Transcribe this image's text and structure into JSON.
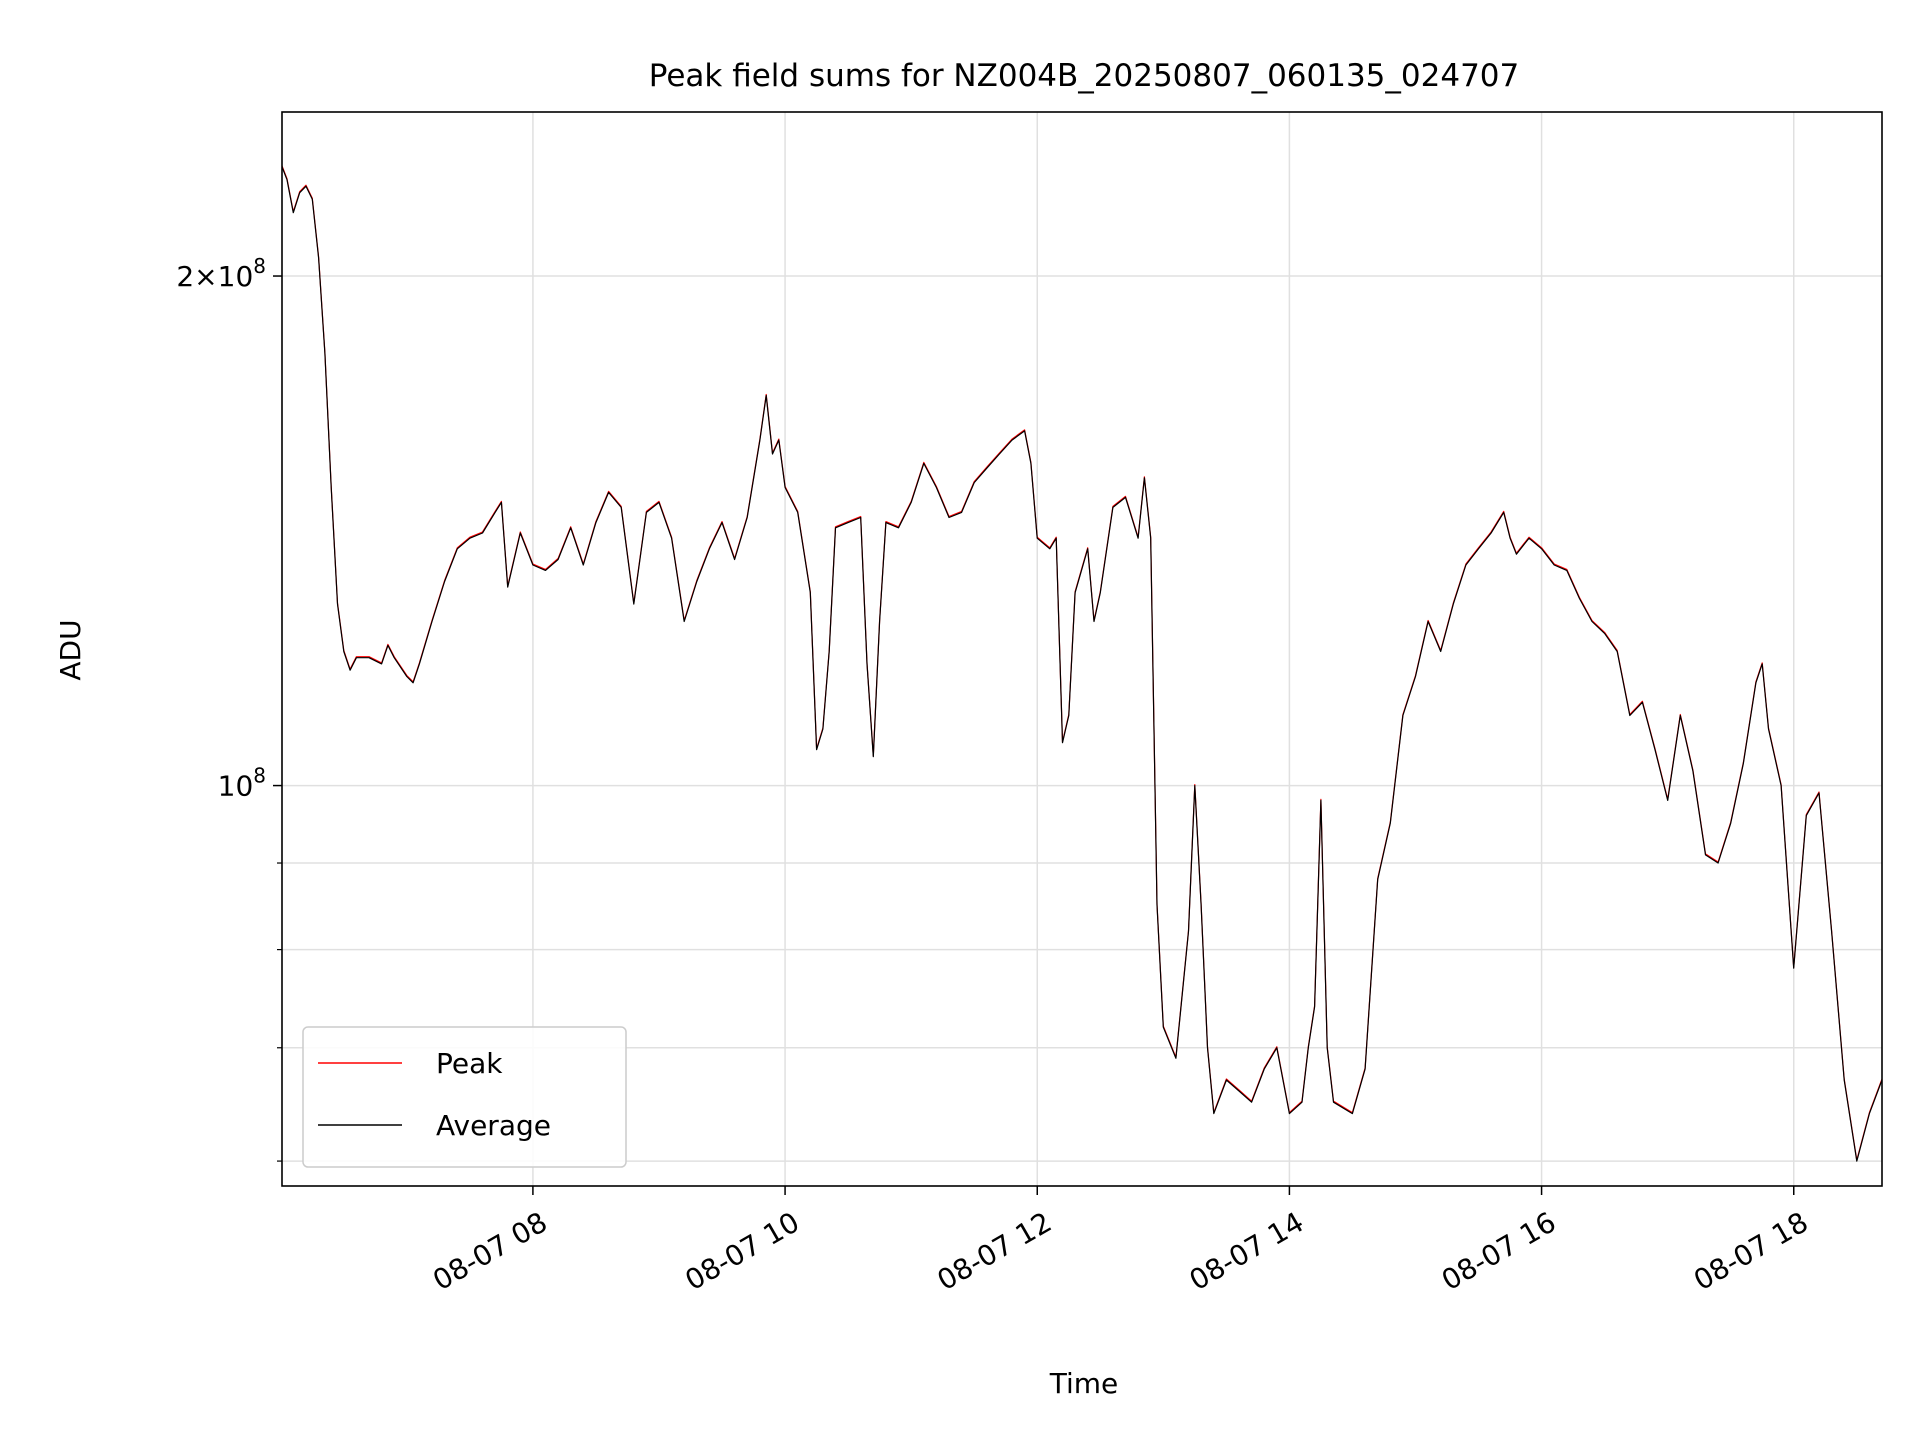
{
  "chart_data": {
    "type": "line",
    "title": "Peak field sums for NZ004B_20250807_060135_024707",
    "xlabel": "Time",
    "ylabel": "ADU",
    "x_unit": "hours (2025-08-07, clock time)",
    "xlim": [
      6.01,
      18.7
    ],
    "ylim": [
      58000000,
      250000000
    ],
    "yscale": "log",
    "grid": true,
    "legend_position": "lower left",
    "x_ticks": [
      {
        "value": 8,
        "label": "08-07 08"
      },
      {
        "value": 10,
        "label": "08-07 10"
      },
      {
        "value": 12,
        "label": "08-07 12"
      },
      {
        "value": 14,
        "label": "08-07 14"
      },
      {
        "value": 16,
        "label": "08-07 16"
      },
      {
        "value": 18,
        "label": "08-07 18"
      }
    ],
    "y_major_ticks": [
      {
        "value": 100000000,
        "base": "10",
        "exp": "8",
        "prefix": ""
      },
      {
        "value": 200000000,
        "base": "10",
        "exp": "8",
        "prefix": "2×"
      }
    ],
    "y_minor_ticks": [
      60000000,
      70000000,
      80000000,
      90000000
    ],
    "series": [
      {
        "name": "Peak",
        "color": "#ff0000",
        "width": 1.2
      },
      {
        "name": "Average",
        "color": "#000000",
        "width": 1.2
      }
    ],
    "points": [
      [
        6.01,
        232000000
      ],
      [
        6.05,
        228000000
      ],
      [
        6.1,
        218000000
      ],
      [
        6.15,
        224000000
      ],
      [
        6.2,
        226000000
      ],
      [
        6.25,
        222000000
      ],
      [
        6.3,
        205000000
      ],
      [
        6.35,
        180000000
      ],
      [
        6.4,
        150000000
      ],
      [
        6.45,
        128000000
      ],
      [
        6.5,
        120000000
      ],
      [
        6.55,
        117000000
      ],
      [
        6.6,
        119000000
      ],
      [
        6.7,
        119000000
      ],
      [
        6.8,
        118000000
      ],
      [
        6.85,
        121000000
      ],
      [
        6.9,
        119000000
      ],
      [
        7.0,
        116000000
      ],
      [
        7.05,
        115000000
      ],
      [
        7.1,
        118000000
      ],
      [
        7.2,
        125000000
      ],
      [
        7.3,
        132000000
      ],
      [
        7.4,
        138000000
      ],
      [
        7.5,
        140000000
      ],
      [
        7.6,
        141000000
      ],
      [
        7.7,
        145000000
      ],
      [
        7.75,
        147000000
      ],
      [
        7.8,
        131000000
      ],
      [
        7.9,
        141000000
      ],
      [
        8.0,
        135000000
      ],
      [
        8.1,
        134000000
      ],
      [
        8.2,
        136000000
      ],
      [
        8.3,
        142000000
      ],
      [
        8.4,
        135000000
      ],
      [
        8.5,
        143000000
      ],
      [
        8.6,
        149000000
      ],
      [
        8.7,
        146000000
      ],
      [
        8.8,
        128000000
      ],
      [
        8.9,
        145000000
      ],
      [
        9.0,
        147000000
      ],
      [
        9.1,
        140000000
      ],
      [
        9.2,
        125000000
      ],
      [
        9.3,
        132000000
      ],
      [
        9.4,
        138000000
      ],
      [
        9.5,
        143000000
      ],
      [
        9.6,
        136000000
      ],
      [
        9.7,
        144000000
      ],
      [
        9.8,
        160000000
      ],
      [
        9.85,
        170000000
      ],
      [
        9.9,
        157000000
      ],
      [
        9.95,
        160000000
      ],
      [
        10.0,
        150000000
      ],
      [
        10.1,
        145000000
      ],
      [
        10.2,
        130000000
      ],
      [
        10.25,
        105000000
      ],
      [
        10.3,
        108000000
      ],
      [
        10.35,
        120000000
      ],
      [
        10.4,
        142000000
      ],
      [
        10.5,
        143000000
      ],
      [
        10.6,
        144000000
      ],
      [
        10.65,
        118000000
      ],
      [
        10.7,
        104000000
      ],
      [
        10.75,
        125000000
      ],
      [
        10.8,
        143000000
      ],
      [
        10.9,
        142000000
      ],
      [
        11.0,
        147000000
      ],
      [
        11.1,
        155000000
      ],
      [
        11.2,
        150000000
      ],
      [
        11.3,
        144000000
      ],
      [
        11.4,
        145000000
      ],
      [
        11.5,
        151000000
      ],
      [
        11.6,
        154000000
      ],
      [
        11.7,
        157000000
      ],
      [
        11.8,
        160000000
      ],
      [
        11.9,
        162000000
      ],
      [
        11.95,
        155000000
      ],
      [
        12.0,
        140000000
      ],
      [
        12.1,
        138000000
      ],
      [
        12.15,
        140000000
      ],
      [
        12.2,
        106000000
      ],
      [
        12.25,
        110000000
      ],
      [
        12.3,
        130000000
      ],
      [
        12.4,
        138000000
      ],
      [
        12.45,
        125000000
      ],
      [
        12.5,
        130000000
      ],
      [
        12.6,
        146000000
      ],
      [
        12.7,
        148000000
      ],
      [
        12.8,
        140000000
      ],
      [
        12.85,
        152000000
      ],
      [
        12.9,
        140000000
      ],
      [
        12.95,
        85000000
      ],
      [
        13.0,
        72000000
      ],
      [
        13.1,
        69000000
      ],
      [
        13.2,
        82000000
      ],
      [
        13.25,
        100000000
      ],
      [
        13.3,
        85000000
      ],
      [
        13.35,
        70000000
      ],
      [
        13.4,
        64000000
      ],
      [
        13.5,
        67000000
      ],
      [
        13.6,
        66000000
      ],
      [
        13.7,
        65000000
      ],
      [
        13.8,
        68000000
      ],
      [
        13.9,
        70000000
      ],
      [
        14.0,
        64000000
      ],
      [
        14.1,
        65000000
      ],
      [
        14.15,
        70000000
      ],
      [
        14.2,
        74000000
      ],
      [
        14.25,
        98000000
      ],
      [
        14.3,
        70000000
      ],
      [
        14.35,
        65000000
      ],
      [
        14.5,
        64000000
      ],
      [
        14.6,
        68000000
      ],
      [
        14.7,
        88000000
      ],
      [
        14.8,
        95000000
      ],
      [
        14.9,
        110000000
      ],
      [
        15.0,
        116000000
      ],
      [
        15.1,
        125000000
      ],
      [
        15.2,
        120000000
      ],
      [
        15.3,
        128000000
      ],
      [
        15.4,
        135000000
      ],
      [
        15.5,
        138000000
      ],
      [
        15.6,
        141000000
      ],
      [
        15.7,
        145000000
      ],
      [
        15.75,
        140000000
      ],
      [
        15.8,
        137000000
      ],
      [
        15.9,
        140000000
      ],
      [
        16.0,
        138000000
      ],
      [
        16.1,
        135000000
      ],
      [
        16.2,
        134000000
      ],
      [
        16.3,
        129000000
      ],
      [
        16.4,
        125000000
      ],
      [
        16.5,
        123000000
      ],
      [
        16.6,
        120000000
      ],
      [
        16.7,
        110000000
      ],
      [
        16.8,
        112000000
      ],
      [
        16.9,
        105000000
      ],
      [
        17.0,
        98000000
      ],
      [
        17.1,
        110000000
      ],
      [
        17.2,
        102000000
      ],
      [
        17.3,
        91000000
      ],
      [
        17.4,
        90000000
      ],
      [
        17.5,
        95000000
      ],
      [
        17.6,
        103000000
      ],
      [
        17.7,
        115000000
      ],
      [
        17.75,
        118000000
      ],
      [
        17.8,
        108000000
      ],
      [
        17.9,
        100000000
      ],
      [
        18.0,
        78000000
      ],
      [
        18.1,
        96000000
      ],
      [
        18.2,
        99000000
      ],
      [
        18.3,
        82000000
      ],
      [
        18.4,
        67000000
      ],
      [
        18.5,
        60000000
      ],
      [
        18.6,
        64000000
      ],
      [
        18.7,
        67000000
      ]
    ]
  }
}
